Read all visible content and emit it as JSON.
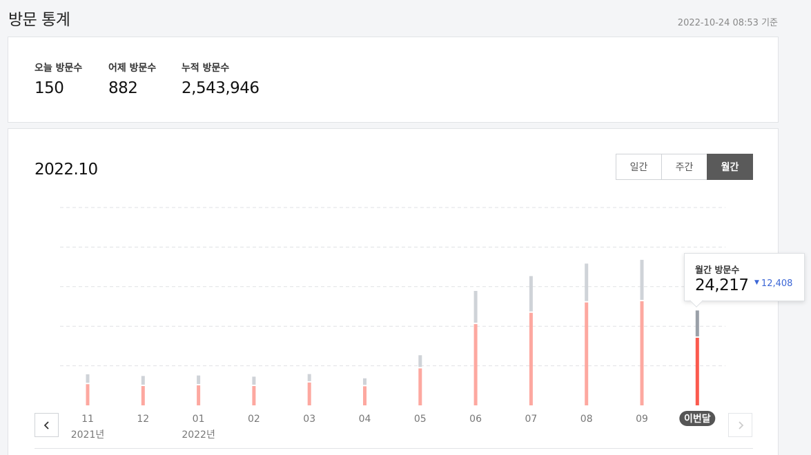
{
  "header": {
    "title": "방문 통계",
    "timestamp": "2022-10-24 08:53 기준"
  },
  "summary": {
    "stats": [
      {
        "label": "오늘 방문수",
        "value": "150"
      },
      {
        "label": "어제 방문수",
        "value": "882"
      },
      {
        "label": "누적 방문수",
        "value": "2,543,946"
      }
    ]
  },
  "chart_panel": {
    "period": "2022.10",
    "tabs": [
      {
        "label": "일간",
        "active": false
      },
      {
        "label": "주간",
        "active": false
      },
      {
        "label": "월간",
        "active": true
      }
    ],
    "tooltip": {
      "label": "월간 방문수",
      "value": "24,217",
      "change_arrow": "▼",
      "change": "12,408"
    },
    "prev_icon": "chevron-left-icon",
    "next_icon": "chevron-right-icon"
  },
  "chart_data": {
    "type": "bar",
    "categories": [
      "11",
      "12",
      "01",
      "02",
      "03",
      "04",
      "05",
      "06",
      "07",
      "08",
      "09",
      "이번달"
    ],
    "year_labels": {
      "0": "2021년",
      "2": "2022년"
    },
    "highlight_index": 11,
    "series": [
      {
        "values": [
          9000,
          8200,
          8500,
          8200,
          9700,
          8100,
          15700,
          34500,
          39300,
          43700,
          44200,
          28700
        ]
      },
      {
        "values": [
          3600,
          3700,
          3600,
          3400,
          3000,
          2800,
          5000,
          13500,
          15000,
          15900,
          17000,
          11000
        ]
      }
    ],
    "colors": {
      "series_main": "#fda8a0",
      "series_top": "#cfd3d8",
      "highlight_main": "#fb5a4e",
      "highlight_top": "#9aa0a8",
      "grid": "#dfe1e4",
      "label_badge": "#555555"
    },
    "ylim": [
      0,
      84000
    ],
    "grid": true,
    "stacked": true
  }
}
